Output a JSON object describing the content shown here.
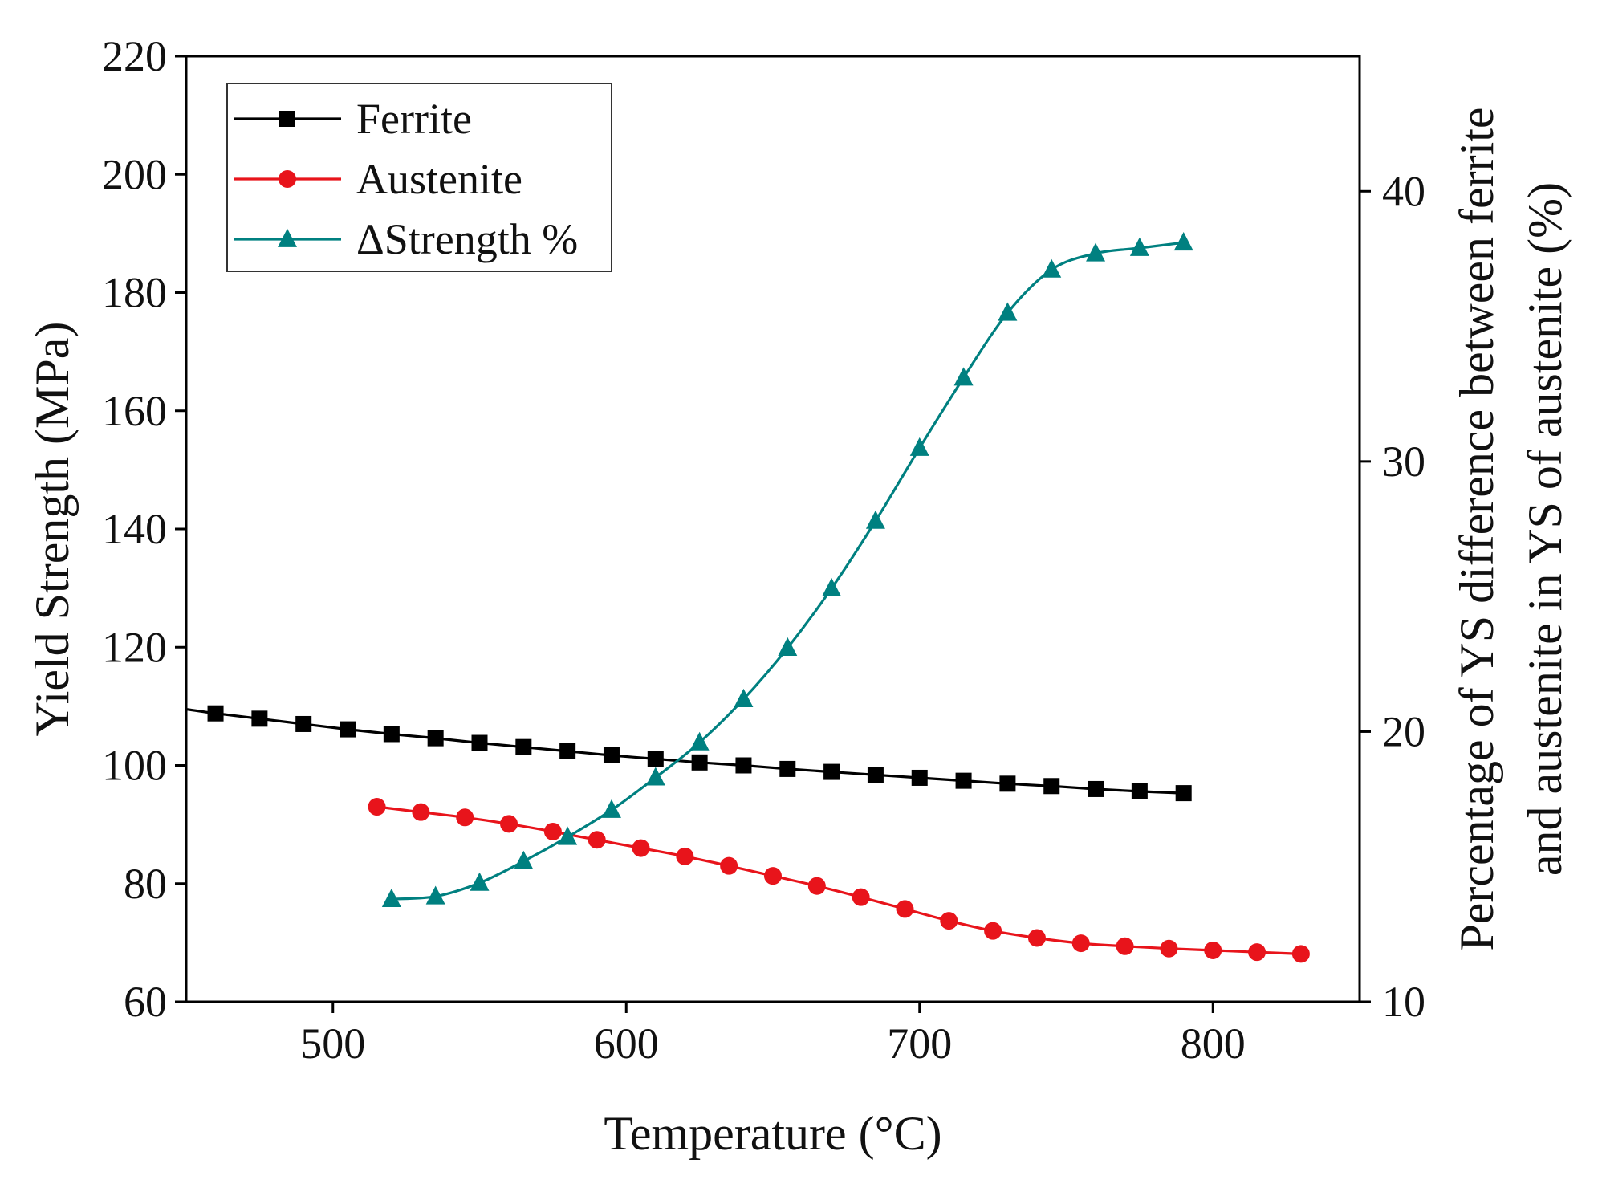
{
  "chart_data": {
    "type": "line",
    "title": "",
    "xlabel": "Temperature (°C)",
    "ylabel": "Yield Strength (MPa)",
    "y2label_line1": "Percentage of YS difference between ferrite",
    "y2label_line2": "and austenite in YS of austenite (%)",
    "xlim": [
      450,
      850
    ],
    "ylim": [
      60,
      220
    ],
    "y2lim": [
      10,
      45
    ],
    "xticks": [
      500,
      600,
      700,
      800
    ],
    "yticks": [
      60,
      80,
      100,
      120,
      140,
      160,
      180,
      200,
      220
    ],
    "y2ticks": [
      10,
      20,
      30,
      40
    ],
    "legend_position": "top-left",
    "series": [
      {
        "name": "Ferrite",
        "axis": "left",
        "color": "#000000",
        "marker": "square",
        "extend_left_to": 109.5,
        "x": [
          460,
          475,
          490,
          505,
          520,
          535,
          550,
          565,
          580,
          595,
          610,
          625,
          640,
          655,
          670,
          685,
          700,
          715,
          730,
          745,
          760,
          775,
          790
        ],
        "y": [
          108.8,
          107.9,
          107.0,
          106.1,
          105.3,
          104.6,
          103.8,
          103.1,
          102.4,
          101.7,
          101.1,
          100.5,
          100.0,
          99.4,
          98.9,
          98.4,
          97.9,
          97.4,
          96.9,
          96.5,
          96.0,
          95.6,
          95.3
        ]
      },
      {
        "name": "Austenite",
        "axis": "left",
        "color": "#e8141b",
        "marker": "circle",
        "x": [
          515,
          530,
          545,
          560,
          575,
          590,
          605,
          620,
          635,
          650,
          665,
          680,
          695,
          710,
          725,
          740,
          755,
          770,
          785,
          800,
          815,
          830
        ],
        "y": [
          93.0,
          92.1,
          91.2,
          90.1,
          88.8,
          87.4,
          86.0,
          84.6,
          83.0,
          81.3,
          79.6,
          77.7,
          75.7,
          73.7,
          72.0,
          70.8,
          69.9,
          69.4,
          69.0,
          68.7,
          68.4,
          68.1
        ]
      },
      {
        "name": "ΔStrength %",
        "axis": "right",
        "color": "#008080",
        "marker": "triangle",
        "x": [
          520,
          535,
          550,
          565,
          580,
          595,
          610,
          625,
          640,
          655,
          670,
          685,
          700,
          715,
          730,
          745,
          760,
          775,
          790
        ],
        "y": [
          13.8,
          13.9,
          14.4,
          15.2,
          16.1,
          17.1,
          18.3,
          19.6,
          21.2,
          23.1,
          25.3,
          27.8,
          30.5,
          33.1,
          35.5,
          37.1,
          37.7,
          37.9,
          38.1
        ]
      }
    ]
  }
}
